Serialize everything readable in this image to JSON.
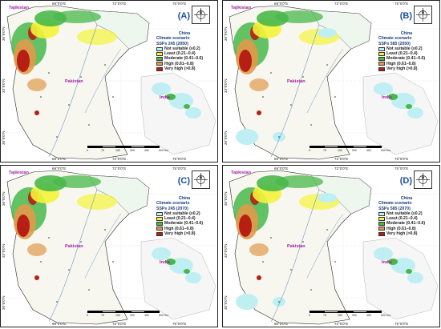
{
  "panels": [
    {
      "letter": "(A)",
      "scenario": "SSPs 245 (2050)",
      "variant": "a"
    },
    {
      "letter": "(B)",
      "scenario": "SSPs 585 (2050)",
      "variant": "b"
    },
    {
      "letter": "(C)",
      "scenario": "SSPs 245 (2070)",
      "variant": "a"
    },
    {
      "letter": "(D)",
      "scenario": "SSPs 585 (2070)",
      "variant": "b"
    }
  ],
  "legend": {
    "title_line1": "China",
    "title_line2": "Climate scenario",
    "classes": [
      {
        "label": "Not suitable (≤0.2)",
        "color": "#bfeff2"
      },
      {
        "label": "Least (0.21–0.4)",
        "color": "#f4f33a"
      },
      {
        "label": "Moderate (0.41–0.6)",
        "color": "#49b84a"
      },
      {
        "label": "High (0.61–0.8)",
        "color": "#e09a4a"
      },
      {
        "label": "Very high (>0.8)",
        "color": "#b81f14"
      }
    ]
  },
  "countries": {
    "tajikistan": "Tajikistan",
    "pakistan": "Pakistan",
    "india": "India",
    "china": "China"
  },
  "coords": {
    "top": [
      "69°0'0\"E",
      "72°0'0\"E",
      "75°0'0\"E"
    ],
    "left": [
      "36°0'0\"N",
      "33°0'0\"N",
      "30°0'0\"N"
    ],
    "bottom": [
      "69°0'0\"E",
      "72°0'0\"E",
      "75°0'0\"E"
    ]
  },
  "scale": {
    "ticks": [
      "0",
      "75",
      "150",
      "300",
      "450",
      "600"
    ],
    "unit": "Km"
  }
}
